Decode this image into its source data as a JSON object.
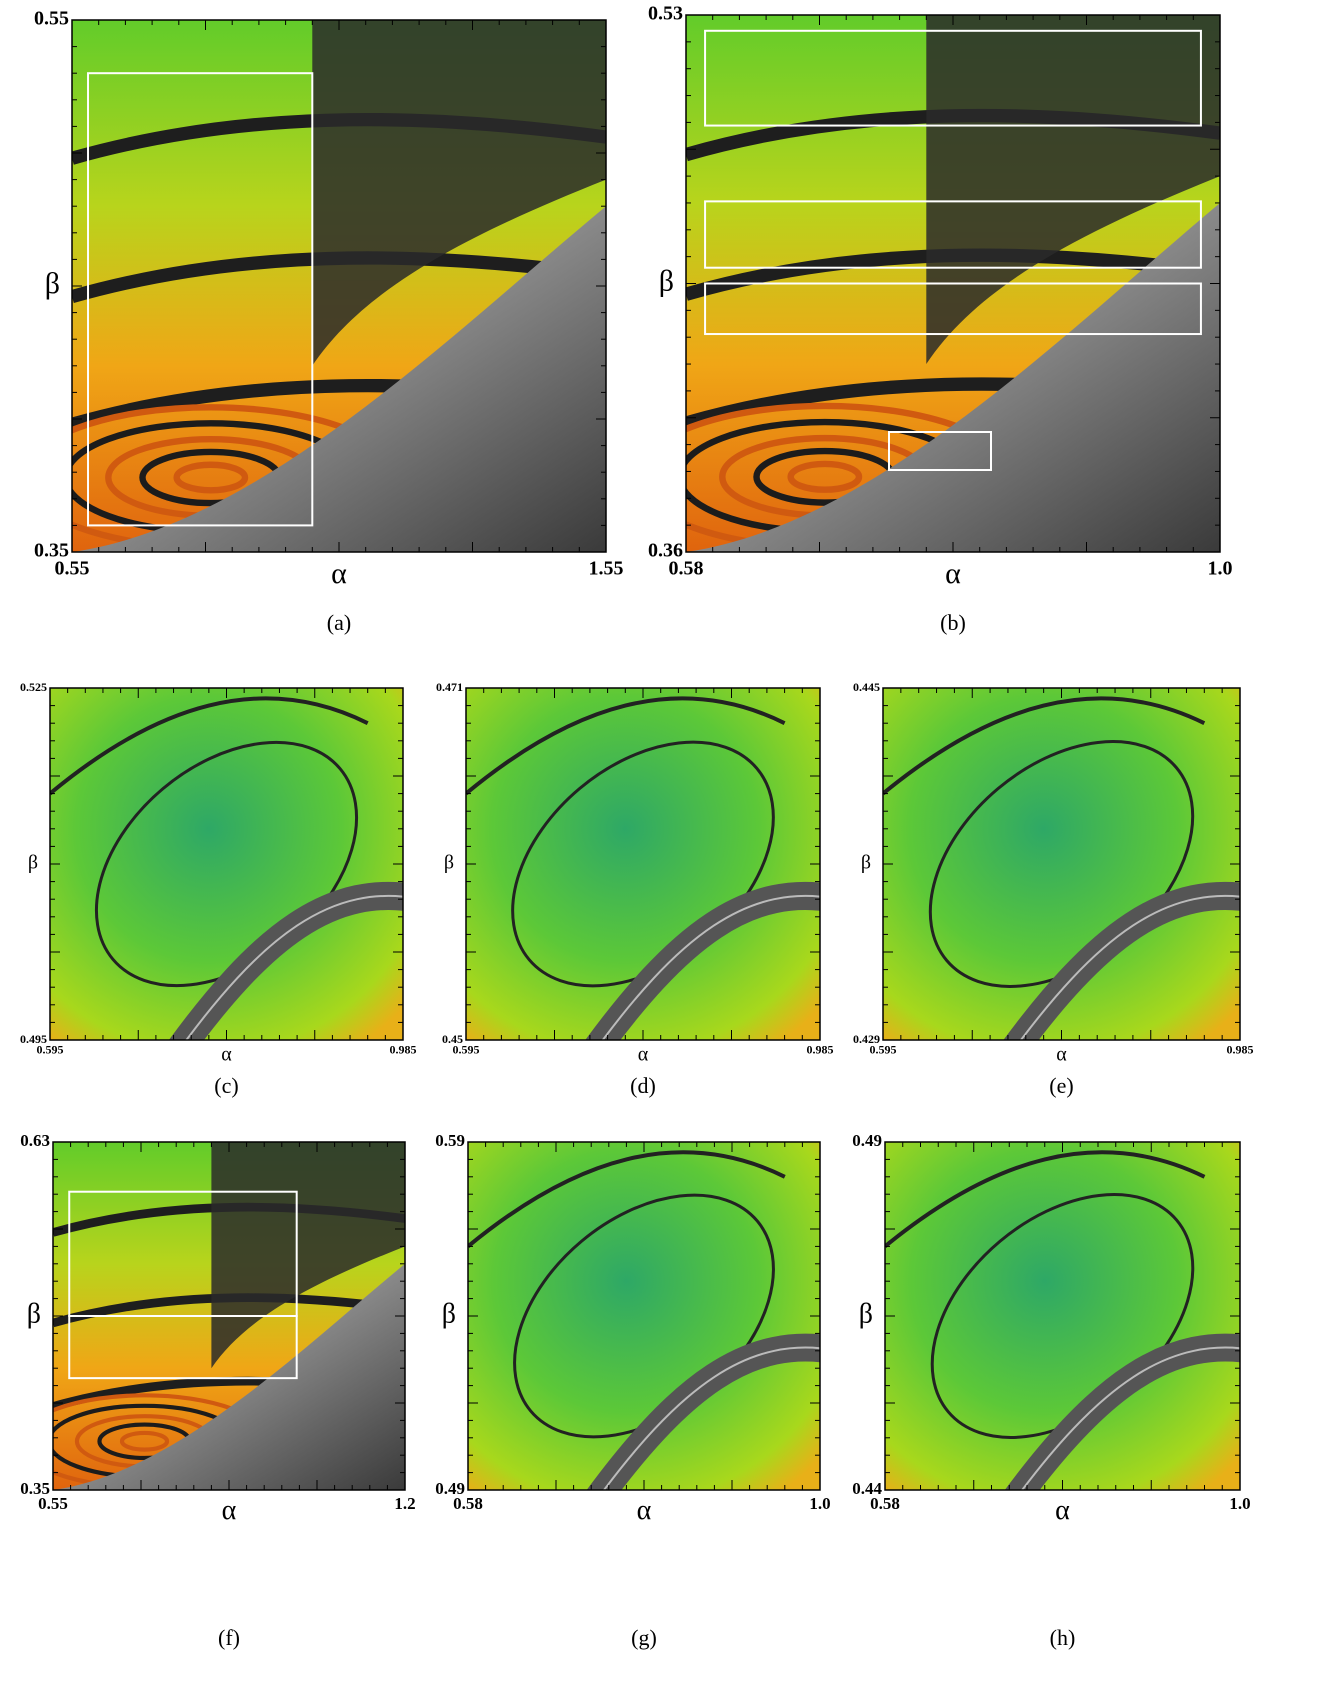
{
  "chart_data": [
    {
      "type": "image",
      "caption": "(a)",
      "x_label": "α",
      "y_label": "β",
      "xlim": [
        0.55,
        1.55
      ],
      "ylim": [
        0.35,
        0.55
      ],
      "xticks": [
        0.55,
        1.55
      ],
      "yticks": [
        0.35,
        0.55
      ]
    },
    {
      "type": "image",
      "caption": "(b)",
      "x_label": "α",
      "y_label": "β",
      "xlim": [
        0.58,
        1
      ],
      "ylim": [
        0.36,
        0.53
      ],
      "xticks": [
        0.58,
        {
          "value": 1,
          "label": "1.0"
        }
      ],
      "yticks": [
        0.36,
        0.53
      ]
    },
    {
      "type": "image",
      "caption": "(c)",
      "x_label": "α",
      "y_label": "β",
      "xlim": [
        0.595,
        0.985
      ],
      "ylim": [
        0.495,
        0.525
      ],
      "xticks": [
        0.595,
        0.985
      ],
      "yticks": [
        0.495,
        0.525
      ]
    },
    {
      "type": "image",
      "caption": "(d)",
      "x_label": "α",
      "y_label": "β",
      "xlim": [
        0.595,
        0.985
      ],
      "ylim": [
        0.45,
        0.471
      ],
      "xticks": [
        0.595,
        0.985
      ],
      "yticks": [
        0.45,
        0.471
      ]
    },
    {
      "type": "image",
      "caption": "(e)",
      "x_label": "α",
      "y_label": "β",
      "xlim": [
        0.595,
        0.985
      ],
      "ylim": [
        0.429,
        0.445
      ],
      "xticks": [
        0.595,
        0.985
      ],
      "yticks": [
        0.429,
        0.445
      ]
    },
    {
      "type": "image",
      "caption": "(f)",
      "x_label": "α",
      "y_label": "β",
      "xlim": [
        0.55,
        1.2
      ],
      "ylim": [
        0.35,
        0.63
      ],
      "xticks": [
        0.55,
        1.2
      ],
      "yticks": [
        0.35,
        0.63
      ]
    },
    {
      "type": "image",
      "caption": "(g)",
      "x_label": "α",
      "y_label": "β",
      "xlim": [
        0.58,
        1
      ],
      "ylim": [
        0.49,
        0.59
      ],
      "xticks": [
        0.58,
        {
          "value": 1,
          "label": "1.0"
        }
      ],
      "yticks": [
        0.49,
        0.59
      ]
    },
    {
      "type": "image",
      "caption": "(h)",
      "x_label": "α",
      "y_label": "β",
      "xlim": [
        0.58,
        1
      ],
      "ylim": [
        0.44,
        0.49
      ],
      "xticks": [
        0.58,
        {
          "value": 1,
          "label": "1.0"
        }
      ],
      "yticks": [
        0.44,
        0.49
      ]
    }
  ]
}
